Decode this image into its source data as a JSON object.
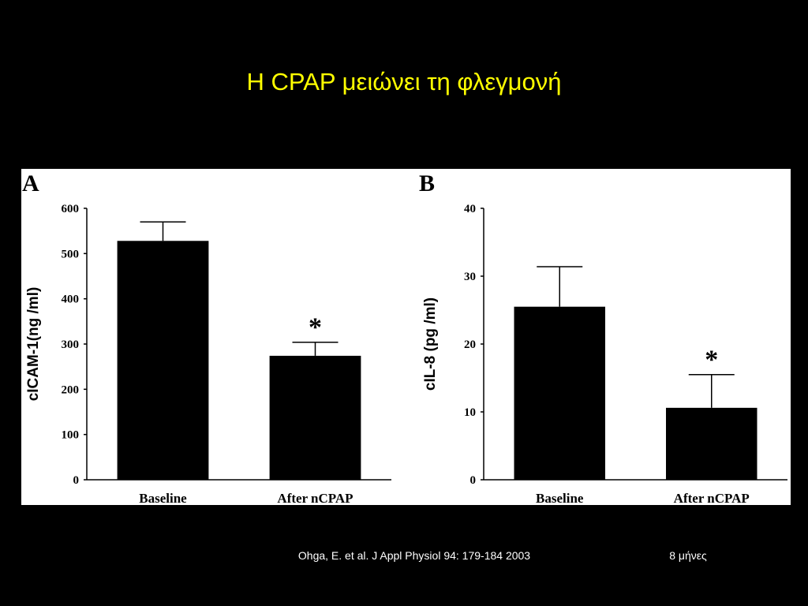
{
  "slide_title": "Η CPAP μειώνει τη φλεγμονή",
  "citation": "Ohga, E. et al. J Appl Physiol 94: 179-184 2003",
  "note": "8 μήνες",
  "chart_data": [
    {
      "type": "bar",
      "panel_label": "A",
      "y_label": "cICAM-1(ng /ml)",
      "categories": [
        "Baseline",
        "After nCPAP"
      ],
      "values": [
        528,
        274
      ],
      "errors": [
        42,
        30
      ],
      "color": "#000000",
      "ylim": [
        0,
        600
      ],
      "yticks": [
        0,
        100,
        200,
        300,
        400,
        500,
        600
      ],
      "significance_marker": "*",
      "grid": false
    },
    {
      "type": "bar",
      "panel_label": "B",
      "y_label": "cIL-8 (pg /ml)",
      "categories": [
        "Baseline",
        "After nCPAP"
      ],
      "values": [
        25.5,
        10.6
      ],
      "errors": [
        5.9,
        4.9
      ],
      "color": "#000000",
      "ylim": [
        0,
        40
      ],
      "yticks": [
        0,
        10,
        20,
        30,
        40
      ],
      "significance_marker": "*",
      "grid": false
    }
  ]
}
